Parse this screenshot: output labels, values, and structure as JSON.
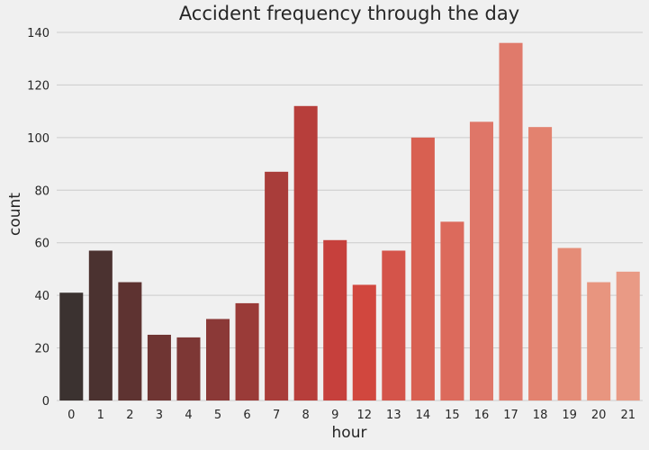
{
  "chart_data": {
    "type": "bar",
    "title": "Accident frequency through the day",
    "xlabel": "hour",
    "ylabel": "count",
    "categories": [
      "0",
      "1",
      "2",
      "3",
      "4",
      "5",
      "6",
      "7",
      "8",
      "9",
      "12",
      "13",
      "14",
      "15",
      "16",
      "17",
      "18",
      "19",
      "20",
      "21"
    ],
    "values": [
      41,
      57,
      45,
      25,
      24,
      31,
      37,
      87,
      112,
      61,
      44,
      57,
      100,
      68,
      106,
      136,
      104,
      58,
      45,
      49
    ],
    "ylim": [
      0,
      140
    ],
    "yticks": [
      0,
      20,
      40,
      60,
      80,
      100,
      120,
      140
    ],
    "grid": true,
    "colors": [
      "#3b3230",
      "#4b3230",
      "#5e3331",
      "#6f3533",
      "#7d3735",
      "#8b3937",
      "#9a3b38",
      "#a93d3a",
      "#b73e3b",
      "#c6403c",
      "#d1473e",
      "#d4544a",
      "#d86051",
      "#dc6a5c",
      "#df7668",
      "#e07a6b",
      "#e3826f",
      "#e58c77",
      "#e8957f",
      "#e99a85"
    ],
    "background": "#f0f0f0",
    "gridcolor": "#cbcbcb"
  }
}
